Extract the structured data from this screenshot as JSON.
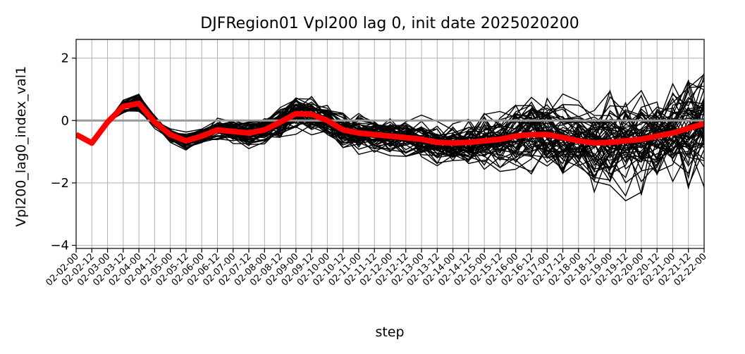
{
  "chart_data": {
    "type": "line",
    "title": "DJFRegion01 Vpl200 lag 0, init date 2025020200",
    "xlabel": "step",
    "ylabel": "Vpl200_lag0_index_val1",
    "categories": [
      "02-02-00",
      "02-02-12",
      "02-03-00",
      "02-03-12",
      "02-04-00",
      "02-04-12",
      "02-05-00",
      "02-05-12",
      "02-06-00",
      "02-06-12",
      "02-07-00",
      "02-07-12",
      "02-08-00",
      "02-08-12",
      "02-09-00",
      "02-09-12",
      "02-10-00",
      "02-10-12",
      "02-11-00",
      "02-11-12",
      "02-12-00",
      "02-12-12",
      "02-13-00",
      "02-13-12",
      "02-14-00",
      "02-14-12",
      "02-15-00",
      "02-15-12",
      "02-16-00",
      "02-16-12",
      "02-17-00",
      "02-17-12",
      "02-18-00",
      "02-18-12",
      "02-19-00",
      "02-19-12",
      "02-20-00",
      "02-20-12",
      "02-21-00",
      "02-21-12",
      "02-22-00"
    ],
    "ylim": [
      -4.1,
      2.6
    ],
    "yticks": [
      -4,
      -2,
      0,
      2
    ],
    "grid": true,
    "reference_line": {
      "y": 0,
      "color": "#999999"
    },
    "series": [
      {
        "role": "highlight",
        "color": "#ff0000",
        "values": [
          -0.45,
          -0.72,
          -0.05,
          0.45,
          0.55,
          -0.05,
          -0.45,
          -0.65,
          -0.5,
          -0.3,
          -0.35,
          -0.4,
          -0.3,
          -0.05,
          0.22,
          0.2,
          0.0,
          -0.3,
          -0.4,
          -0.45,
          -0.5,
          -0.55,
          -0.6,
          -0.7,
          -0.72,
          -0.7,
          -0.65,
          -0.6,
          -0.5,
          -0.45,
          -0.45,
          -0.55,
          -0.65,
          -0.72,
          -0.7,
          -0.65,
          -0.6,
          -0.5,
          -0.4,
          -0.25,
          -0.1
        ]
      }
    ],
    "ensemble": {
      "count": 60,
      "color": "#000000",
      "spread_per_step": [
        0,
        0,
        0,
        0.15,
        0.2,
        0.2,
        0.2,
        0.22,
        0.22,
        0.25,
        0.28,
        0.3,
        0.35,
        0.4,
        0.45,
        0.45,
        0.42,
        0.45,
        0.5,
        0.5,
        0.5,
        0.5,
        0.52,
        0.55,
        0.6,
        0.65,
        0.75,
        0.85,
        0.9,
        0.95,
        1.0,
        1.05,
        1.05,
        1.1,
        1.1,
        1.15,
        1.2,
        1.3,
        1.35,
        1.4,
        1.45
      ]
    }
  }
}
